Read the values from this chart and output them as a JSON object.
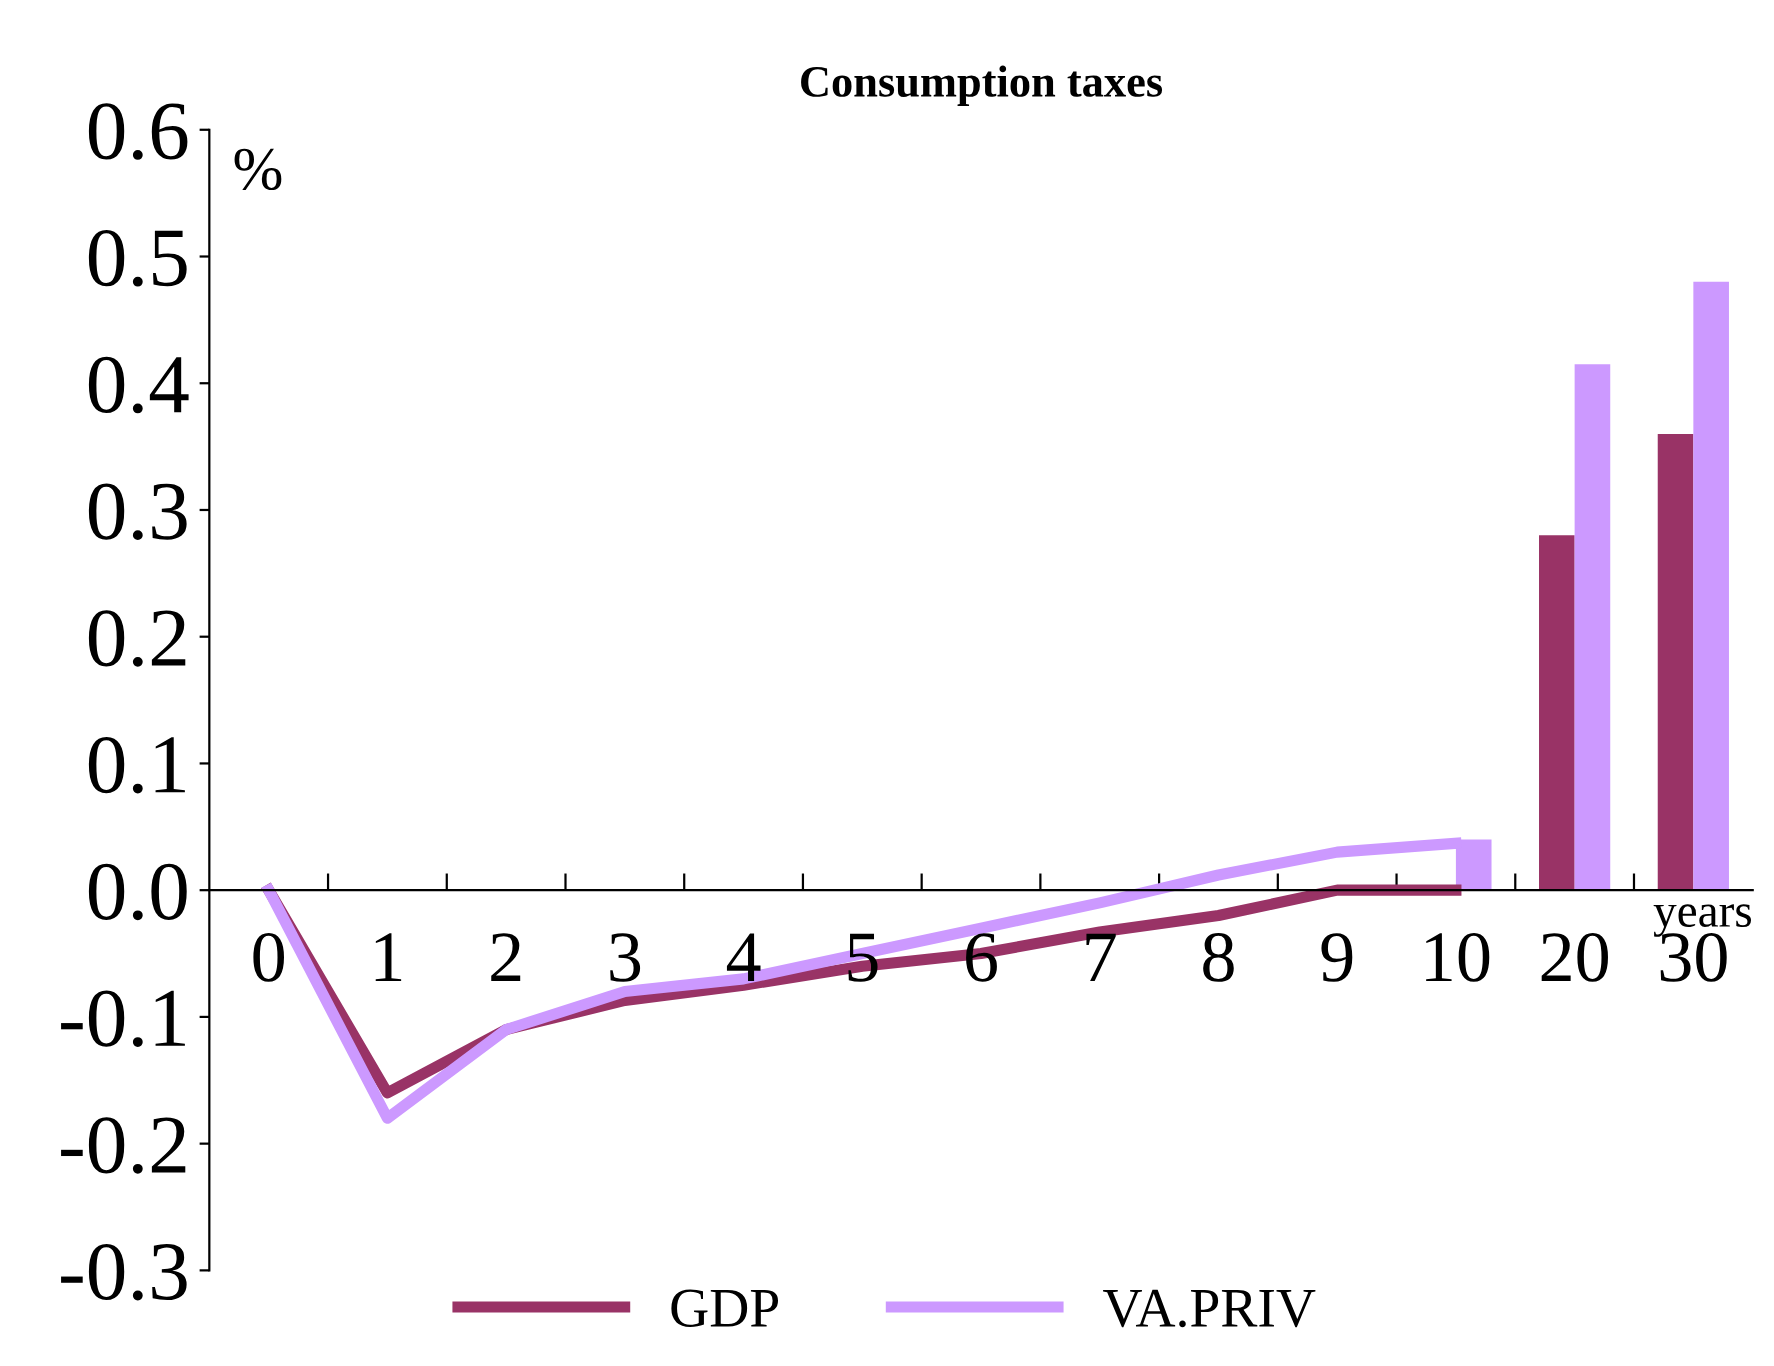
{
  "chart_data": {
    "type": "line",
    "title": "Consumption taxes",
    "ylabel": "%",
    "xlabel": "years",
    "categories": [
      "0",
      "1",
      "2",
      "3",
      "4",
      "5",
      "6",
      "7",
      "8",
      "9",
      "10",
      "20",
      "30"
    ],
    "series": [
      {
        "name": "GDP",
        "color": "#993366",
        "values": [
          0,
          -0.16,
          -0.11,
          -0.087,
          -0.075,
          -0.06,
          -0.05,
          -0.033,
          -0.02,
          0,
          0,
          null,
          null
        ]
      },
      {
        "name": "VA.PRIV",
        "color": "#cc99ff",
        "values": [
          0,
          -0.18,
          -0.11,
          -0.08,
          -0.07,
          -0.05,
          -0.03,
          -0.01,
          0.012,
          0.03,
          0.037,
          null,
          null
        ]
      },
      {
        "type": "bar",
        "color": "#993366",
        "values": [
          null,
          null,
          null,
          null,
          null,
          null,
          null,
          null,
          null,
          null,
          0,
          0.28,
          0.36
        ]
      },
      {
        "type": "bar",
        "color": "#cc99ff",
        "values": [
          null,
          null,
          null,
          null,
          null,
          null,
          null,
          null,
          null,
          null,
          0.04,
          0.415,
          0.48
        ]
      }
    ],
    "ylim": [
      -0.3,
      0.6
    ],
    "yticks": [
      {
        "value": -0.3,
        "label": "-0.3"
      },
      {
        "value": -0.2,
        "label": "-0.2"
      },
      {
        "value": -0.1,
        "label": "-0.1"
      },
      {
        "value": 0,
        "label": "0.0"
      },
      {
        "value": 0.1,
        "label": "0.1"
      },
      {
        "value": 0.2,
        "label": "0.2"
      },
      {
        "value": 0.3,
        "label": "0.3"
      },
      {
        "value": 0.4,
        "label": "0.4"
      },
      {
        "value": 0.5,
        "label": "0.5"
      },
      {
        "value": 0.6,
        "label": "0.6"
      }
    ],
    "grid": false,
    "legend": "bottom",
    "marker": "none",
    "line_style": "solid"
  }
}
